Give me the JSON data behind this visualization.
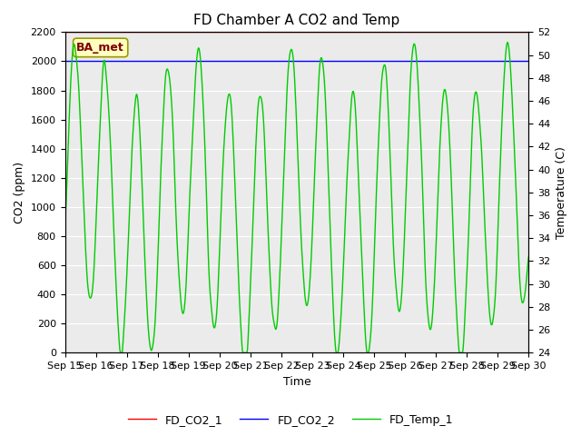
{
  "title": "FD Chamber A CO2 and Temp",
  "xlabel": "Time",
  "ylabel_left": "CO2 (ppm)",
  "ylabel_right": "Temperature (C)",
  "x_ticks": [
    "Sep 15",
    "Sep 16",
    "Sep 17",
    "Sep 18",
    "Sep 19",
    "Sep 20",
    "Sep 21",
    "Sep 22",
    "Sep 23",
    "Sep 24",
    "Sep 25",
    "Sep 26",
    "Sep 27",
    "Sep 28",
    "Sep 29",
    "Sep 30"
  ],
  "ylim_left": [
    0,
    2200
  ],
  "ylim_right": [
    24,
    52
  ],
  "yticks_left": [
    0,
    200,
    400,
    600,
    800,
    1000,
    1200,
    1400,
    1600,
    1800,
    2000,
    2200
  ],
  "yticks_right": [
    24,
    26,
    28,
    30,
    32,
    34,
    36,
    38,
    40,
    42,
    44,
    46,
    48,
    50,
    52
  ],
  "legend_label": "BA_met",
  "series_labels": [
    "FD_CO2_1",
    "FD_CO2_2",
    "FD_Temp_1"
  ],
  "series_colors": [
    "#ff0000",
    "#0000ff",
    "#00cc00"
  ],
  "background_color": "#ffffff",
  "plot_bg_color": "#ebebeb",
  "grid_color": "#ffffff",
  "legend_box_facecolor": "#ffffc0",
  "legend_box_edgecolor": "#999900",
  "label_color": "#800000",
  "title_fontsize": 11,
  "axis_label_fontsize": 9,
  "tick_fontsize": 8,
  "legend_fontsize": 9,
  "linewidth": 1.0
}
